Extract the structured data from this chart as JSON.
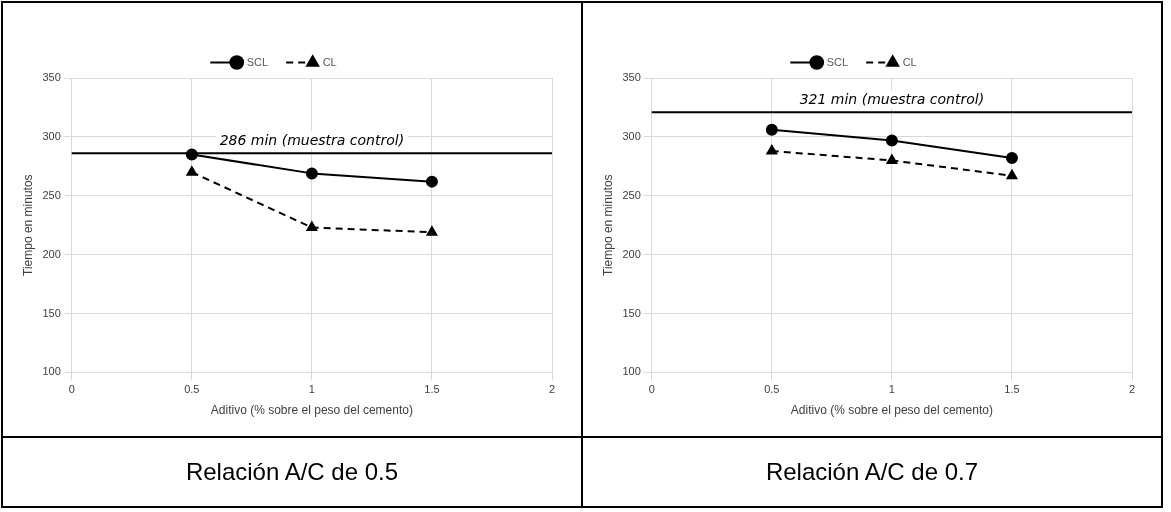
{
  "chart_data": [
    {
      "type": "line",
      "title": "Relación A/C de 0.5",
      "xlabel": "Aditivo (% sobre el peso del cemento)",
      "ylabel": "Tiempo en minutos",
      "x": [
        0.5,
        1,
        1.5
      ],
      "series": [
        {
          "name": "SCL",
          "color": "#000000",
          "values": [
            285,
            269,
            262
          ],
          "marker": "circle",
          "line_style": "solid"
        },
        {
          "name": "CL",
          "color": "#000000",
          "values": [
            270,
            223,
            219
          ],
          "marker": "triangle",
          "line_style": "dashed"
        }
      ],
      "ref_lines": [
        {
          "axis": "y",
          "value": 286,
          "label": "286 min (muestra control)",
          "color": "#000000"
        }
      ],
      "xlim": [
        0,
        2
      ],
      "xticks": [
        0,
        0.5,
        1,
        1.5,
        2
      ],
      "ylim": [
        100,
        350
      ],
      "yticks": [
        100,
        150,
        200,
        250,
        300,
        350
      ],
      "grid": true,
      "legend": "top"
    },
    {
      "type": "line",
      "title": "Relación A/C de 0.7",
      "xlabel": "Aditivo (% sobre el peso del cemento)",
      "ylabel": "Tiempo en minutos",
      "x": [
        0.5,
        1,
        1.5
      ],
      "series": [
        {
          "name": "SCL",
          "color": "#000000",
          "values": [
            306,
            297,
            282
          ],
          "marker": "circle",
          "line_style": "solid"
        },
        {
          "name": "CL",
          "color": "#000000",
          "values": [
            288,
            280,
            267
          ],
          "marker": "triangle",
          "line_style": "dashed"
        }
      ],
      "ref_lines": [
        {
          "axis": "y",
          "value": 321,
          "label": "321 min (muestra control)",
          "color": "#000000"
        }
      ],
      "xlim": [
        0,
        2
      ],
      "xticks": [
        0,
        0.5,
        1,
        1.5,
        2
      ],
      "ylim": [
        100,
        350
      ],
      "yticks": [
        100,
        150,
        200,
        250,
        300,
        350
      ],
      "grid": true,
      "legend": "top"
    }
  ]
}
